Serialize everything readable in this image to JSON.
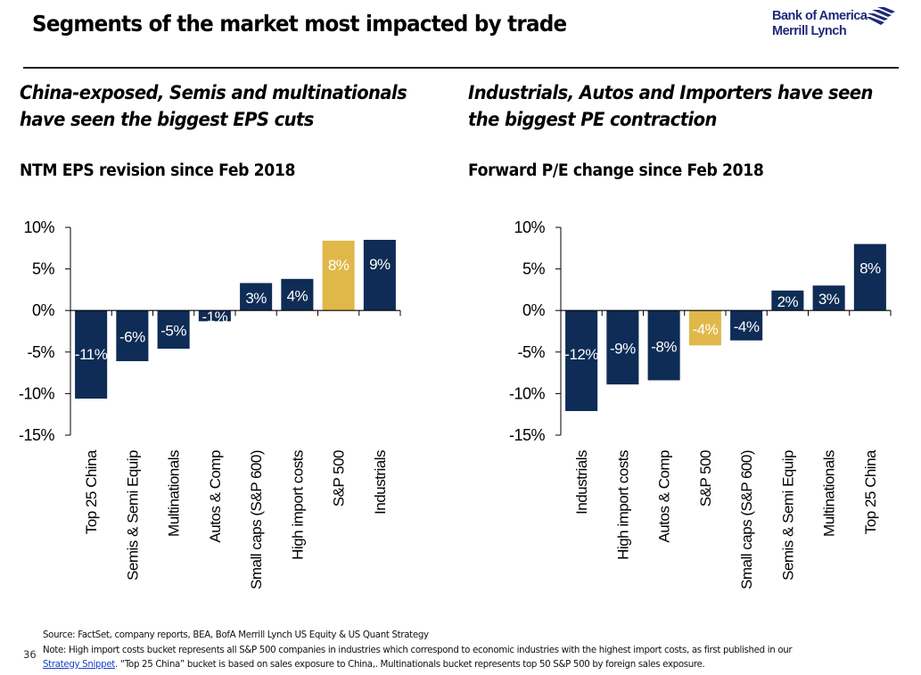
{
  "slide": {
    "title": "Segments of the market most impacted by trade",
    "logo": {
      "line1": "Bank of America",
      "line2": "Merrill Lynch",
      "icon": "flag-chevron-logo-icon"
    },
    "page_number": "36"
  },
  "left_panel": {
    "headline_line1": "China-exposed, Semis and multinationals",
    "headline_line2": "have seen the biggest EPS cuts"
  },
  "right_panel": {
    "headline_line1": "Industrials, Autos and Importers have seen",
    "headline_line2": "the biggest PE contraction"
  },
  "colors": {
    "navy": "#0E2C55",
    "gold": "#E0B84A"
  },
  "chart_data": [
    {
      "type": "bar",
      "title": "NTM EPS revision since Feb 2018",
      "xlabel": "",
      "ylabel": "",
      "ylim": [
        -15,
        10
      ],
      "yticks": [
        10,
        5,
        0,
        -5,
        -10,
        -15
      ],
      "ytick_labels": [
        "10%",
        "5%",
        "0%",
        "-5%",
        "-10%",
        "-15%"
      ],
      "grid": false,
      "categories": [
        "Top 25 China",
        "Semis & Semi Equip",
        "Multinationals",
        "Autos & Comp",
        "Small caps (S&P 600)",
        "High import costs",
        "S&P 500",
        "Industrials"
      ],
      "values": [
        -10.6,
        -6.1,
        -4.6,
        -1.3,
        3.3,
        3.8,
        8.4,
        8.5
      ],
      "data_labels": [
        "-11%",
        "-6%",
        "-5%",
        "-1%",
        "3%",
        "4%",
        "8%",
        "9%"
      ],
      "highlight": [
        "S&P 500"
      ]
    },
    {
      "type": "bar",
      "title": "Forward P/E change since Feb 2018",
      "xlabel": "",
      "ylabel": "",
      "ylim": [
        -15,
        10
      ],
      "yticks": [
        10,
        5,
        0,
        -5,
        -10,
        -15
      ],
      "ytick_labels": [
        "10%",
        "5%",
        "0%",
        "-5%",
        "-10%",
        "-15%"
      ],
      "grid": false,
      "categories": [
        "Industrials",
        "High import costs",
        "Autos & Comp",
        "S&P 500",
        "Small caps (S&P 600)",
        "Semis & Semi Equip",
        "Multinationals",
        "Top 25 China"
      ],
      "values": [
        -12.1,
        -8.9,
        -8.4,
        -4.2,
        -3.6,
        2.4,
        3.0,
        8.0
      ],
      "data_labels": [
        "-12%",
        "-9%",
        "-8%",
        "-4%",
        "-4%",
        "2%",
        "3%",
        "8%"
      ],
      "highlight": [
        "S&P 500"
      ]
    }
  ],
  "footer": {
    "source": "Source: FactSet, company reports, BEA, BofA Merrill Lynch US Equity & US Quant Strategy",
    "note_line1": "Note: High import costs bucket represents all S&P 500 companies in industries which correspond to economic industries with the highest import costs, as first published in our",
    "note_link": "Strategy Snippet",
    "note_line2_rest": ". “Top 25 China” bucket is based on sales exposure to China,. Multinationals bucket represents top 50 S&P 500 by foreign sales exposure."
  }
}
